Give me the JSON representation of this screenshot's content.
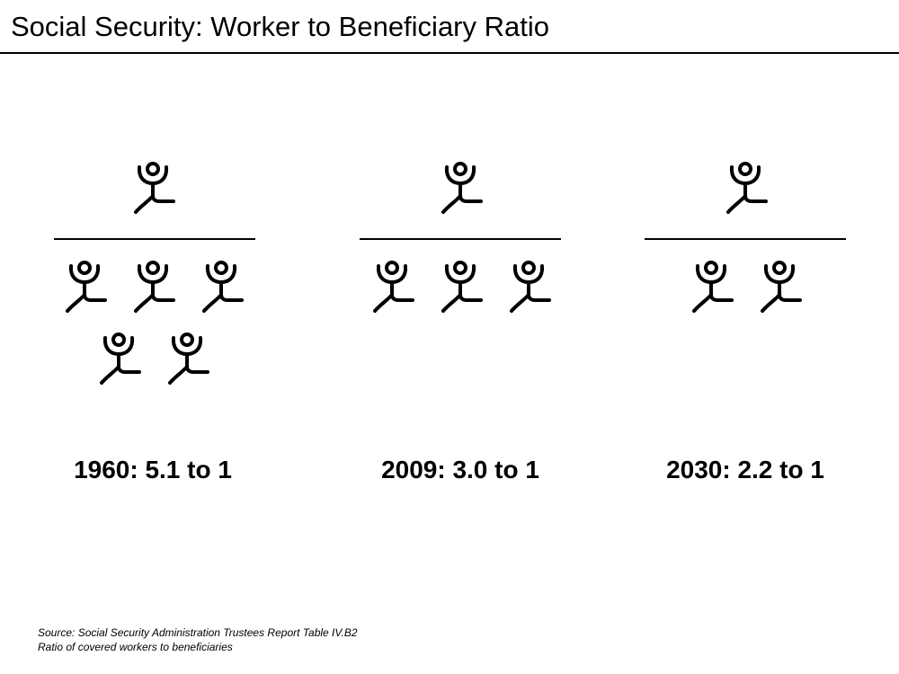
{
  "title": "Social Security:  Worker to Beneficiary Ratio",
  "icons": {
    "person": "stick-figure-icon"
  },
  "panels": [
    {
      "caption": "1960:  5.1 to 1",
      "beneficiaries": 1,
      "workers": 5
    },
    {
      "caption": "2009:  3.0 to 1",
      "beneficiaries": 1,
      "workers": 3
    },
    {
      "caption": "2030:  2.2 to 1",
      "beneficiaries": 1,
      "workers": 2
    }
  ],
  "footnote": {
    "source": "Source:  Social Security Administration Trustees Report Table IV.B2",
    "note": "Ratio of covered workers to beneficiaries"
  }
}
